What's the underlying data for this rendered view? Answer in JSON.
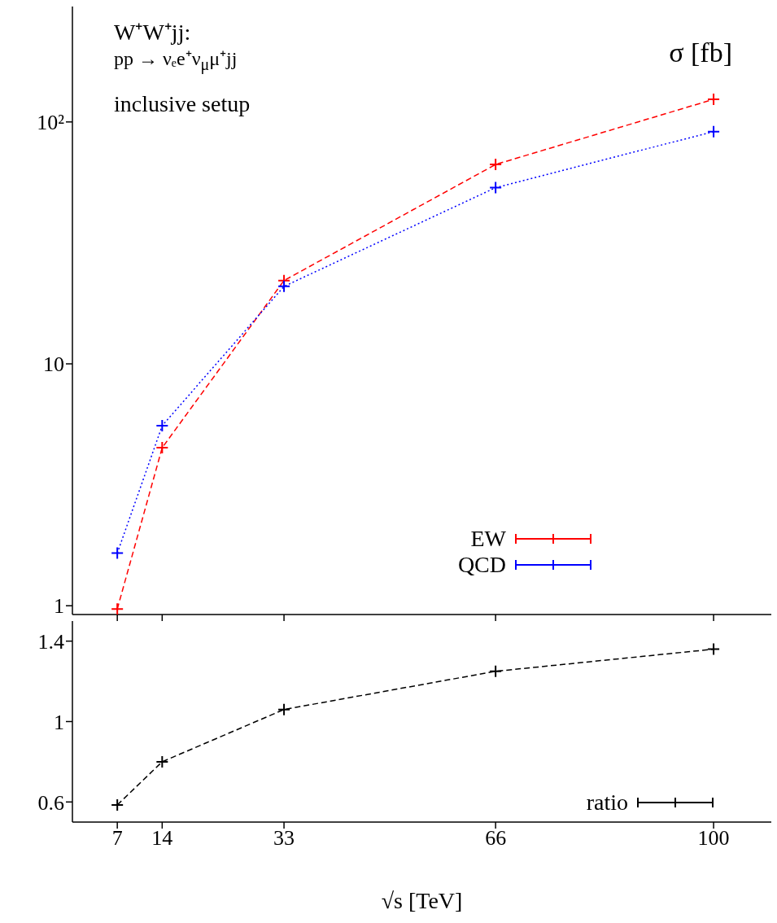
{
  "chart_data": [
    {
      "type": "line",
      "ylabel": "σ [fb]",
      "annotations": [
        "W⁺W⁺jj:",
        "pp → νₑe⁺ν$_{μ}$μ⁺jj",
        "inclusive setup"
      ],
      "x": [
        7,
        14,
        33,
        66,
        100
      ],
      "series": [
        {
          "name": "EW",
          "color": "#ff0000",
          "line_style": "dashed",
          "values": [
            0.97,
            4.5,
            22.1,
            66.7,
            124
          ]
        },
        {
          "name": "QCD",
          "color": "#0000ff",
          "line_style": "dotted",
          "values": [
            1.65,
            5.55,
            20.9,
            53.5,
            91.2
          ]
        }
      ],
      "xlim": [
        0,
        109
      ],
      "xticks": [
        7,
        14,
        33,
        66,
        100
      ],
      "ylim": [
        0.92,
        300
      ],
      "yticks": [
        1,
        10,
        {
          "value": 100,
          "label": "10²"
        }
      ],
      "log": "y",
      "marker": "cross",
      "legend": "bottom right",
      "tick_labels": "y"
    },
    {
      "type": "line",
      "xlabel": "√s [TeV]",
      "x": [
        7,
        14,
        33,
        66,
        100
      ],
      "series": [
        {
          "name": "ratio",
          "color": "#000000",
          "line_style": "dashed",
          "values": [
            0.585,
            0.8,
            1.06,
            1.25,
            1.36
          ]
        }
      ],
      "xlim": [
        0,
        109
      ],
      "xticks": [
        7,
        14,
        33,
        66,
        100
      ],
      "ylim": [
        0.5,
        1.5
      ],
      "yticks": [
        0.6,
        1,
        1.4
      ],
      "marker": "cross",
      "legend": "bottom right"
    }
  ]
}
